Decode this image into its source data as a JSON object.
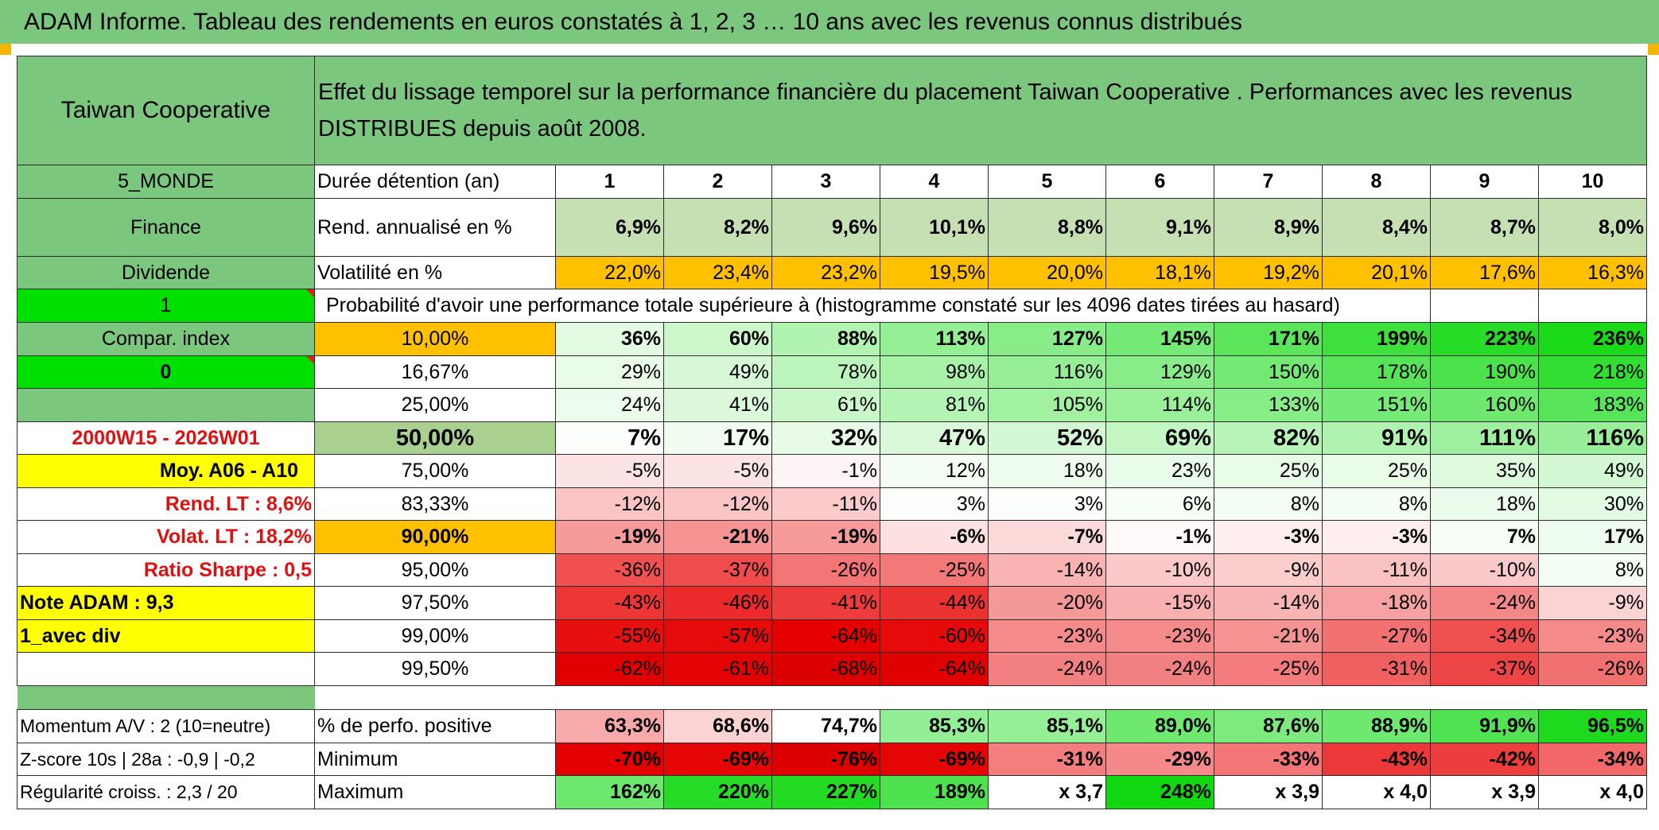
{
  "title": "ADAM Informe. Tableau des rendements en euros constatés à 1, 2, 3 … 10 ans avec les revenus connus distribués",
  "header": {
    "fund_name": "Taiwan Cooperative",
    "description": "Effet du lissage temporel sur la performance financière du placement Taiwan Cooperative . Performances avec les revenus DISTRIBUES depuis août 2008."
  },
  "side": {
    "zone": "5_MONDE",
    "sector": "Finance",
    "type": "Dividende",
    "param1": "1",
    "compar_index": "Compar. index",
    "param0": "0",
    "period": "2000W15 - 2026W01",
    "moy": "Moy. A06 - A10",
    "rend_lt": "Rend. LT :   8,6%",
    "volat_lt": "Volat. LT :   18,2%",
    "sharpe": "Ratio Sharpe :    0,5",
    "note": "Note ADAM : 9,3",
    "div": "1_avec div",
    "momentum": "Momentum A/V : 2 (10=neutre)",
    "zscore": "Z-score 10s | 28a : -0,9 | -0,2",
    "regularite": "Régularité croiss. : 2,3 / 20"
  },
  "labels": {
    "duree": "Durée détention (an)",
    "rend": "Rend. annualisé en %",
    "vol": "Volatilité en %",
    "proba": "Probabilité d'avoir une performance totale supérieure à (histogramme constaté sur les 4096 dates tirées au hasard)",
    "pos": "% de perfo. positive",
    "min": "Minimum",
    "max": "Maximum"
  },
  "years": [
    "1",
    "2",
    "3",
    "4",
    "5",
    "6",
    "7",
    "8",
    "9",
    "10"
  ],
  "rend": [
    "6,9%",
    "8,2%",
    "9,6%",
    "10,1%",
    "8,8%",
    "9,1%",
    "8,9%",
    "8,4%",
    "8,7%",
    "8,0%"
  ],
  "vol": [
    "22,0%",
    "23,4%",
    "23,2%",
    "19,5%",
    "20,0%",
    "18,1%",
    "19,2%",
    "20,1%",
    "17,6%",
    "16,3%"
  ],
  "quantiles": [
    {
      "label": "10,00%",
      "values": [
        "36%",
        "60%",
        "88%",
        "113%",
        "127%",
        "145%",
        "171%",
        "199%",
        "223%",
        "236%"
      ]
    },
    {
      "label": "16,67%",
      "values": [
        "29%",
        "49%",
        "78%",
        "98%",
        "116%",
        "129%",
        "150%",
        "178%",
        "190%",
        "218%"
      ]
    },
    {
      "label": "25,00%",
      "values": [
        "24%",
        "41%",
        "61%",
        "81%",
        "105%",
        "114%",
        "133%",
        "151%",
        "160%",
        "183%"
      ]
    },
    {
      "label": "50,00%",
      "values": [
        "7%",
        "17%",
        "32%",
        "47%",
        "52%",
        "69%",
        "82%",
        "91%",
        "111%",
        "116%"
      ]
    },
    {
      "label": "75,00%",
      "values": [
        "-5%",
        "-5%",
        "-1%",
        "12%",
        "18%",
        "23%",
        "25%",
        "25%",
        "35%",
        "49%"
      ]
    },
    {
      "label": "83,33%",
      "values": [
        "-12%",
        "-12%",
        "-11%",
        "3%",
        "3%",
        "6%",
        "8%",
        "8%",
        "18%",
        "30%"
      ]
    },
    {
      "label": "90,00%",
      "values": [
        "-19%",
        "-21%",
        "-19%",
        "-6%",
        "-7%",
        "-1%",
        "-3%",
        "-3%",
        "7%",
        "17%"
      ]
    },
    {
      "label": "95,00%",
      "values": [
        "-36%",
        "-37%",
        "-26%",
        "-25%",
        "-14%",
        "-10%",
        "-9%",
        "-11%",
        "-10%",
        "8%"
      ]
    },
    {
      "label": "97,50%",
      "values": [
        "-43%",
        "-46%",
        "-41%",
        "-44%",
        "-20%",
        "-15%",
        "-14%",
        "-18%",
        "-24%",
        "-9%"
      ]
    },
    {
      "label": "99,00%",
      "values": [
        "-55%",
        "-57%",
        "-64%",
        "-60%",
        "-23%",
        "-23%",
        "-21%",
        "-27%",
        "-34%",
        "-23%"
      ]
    },
    {
      "label": "99,50%",
      "values": [
        "-62%",
        "-61%",
        "-68%",
        "-64%",
        "-24%",
        "-24%",
        "-25%",
        "-31%",
        "-37%",
        "-26%"
      ]
    }
  ],
  "pos": [
    "63,3%",
    "68,6%",
    "74,7%",
    "85,3%",
    "85,1%",
    "89,0%",
    "87,6%",
    "88,9%",
    "91,9%",
    "96,5%"
  ],
  "min": [
    "-70%",
    "-69%",
    "-76%",
    "-69%",
    "-31%",
    "-29%",
    "-33%",
    "-43%",
    "-42%",
    "-34%"
  ],
  "max": [
    "162%",
    "220%",
    "227%",
    "189%",
    "x 3,7",
    "248%",
    "x 3,9",
    "x 4,0",
    "x 3,9",
    "x 4,0"
  ],
  "colors": {
    "green_header": "#7cc77e",
    "light_green": "#c6e0b4",
    "orange": "#ffc000",
    "bright_green": "#00e000",
    "yellow": "#ffff00",
    "gray_green": "#a9d08e"
  }
}
